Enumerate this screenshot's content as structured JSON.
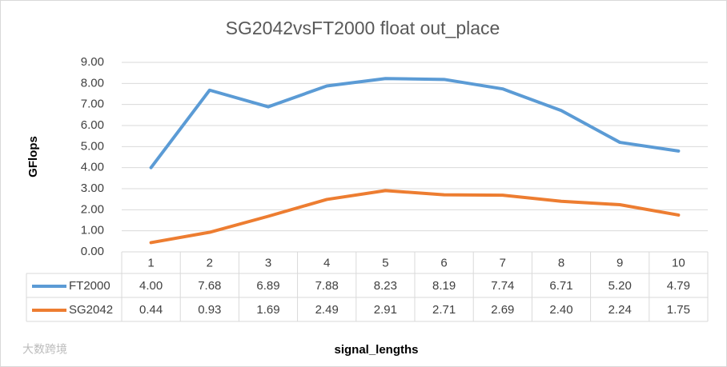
{
  "chart_data": {
    "type": "line",
    "title": "SG2042vsFT2000  float out_place",
    "y_label": "GFlops",
    "x_label": "signal_lengths",
    "watermark": "大数跨境",
    "categories": [
      "1",
      "2",
      "3",
      "4",
      "5",
      "6",
      "7",
      "8",
      "9",
      "10"
    ],
    "series": [
      {
        "name": "FT2000",
        "color": "#5b9bd5",
        "values": [
          4.0,
          7.68,
          6.89,
          7.88,
          8.23,
          8.19,
          7.74,
          6.71,
          5.2,
          4.79
        ],
        "value_labels": [
          "4.00",
          "7.68",
          "6.89",
          "7.88",
          "8.23",
          "8.19",
          "7.74",
          "6.71",
          "5.20",
          "4.79"
        ]
      },
      {
        "name": "SG2042",
        "color": "#ed7d31",
        "values": [
          0.44,
          0.93,
          1.69,
          2.49,
          2.91,
          2.71,
          2.69,
          2.4,
          2.24,
          1.75
        ],
        "value_labels": [
          "0.44",
          "0.93",
          "1.69",
          "2.49",
          "2.91",
          "2.71",
          "2.69",
          "2.40",
          "2.24",
          "1.75"
        ]
      }
    ],
    "ylim": [
      0,
      9
    ],
    "yticks": [
      {
        "value": 0,
        "label": "0.00"
      },
      {
        "value": 1,
        "label": "1.00"
      },
      {
        "value": 2,
        "label": "2.00"
      },
      {
        "value": 3,
        "label": "3.00"
      },
      {
        "value": 4,
        "label": "4.00"
      },
      {
        "value": 5,
        "label": "5.00"
      },
      {
        "value": 6,
        "label": "6.00"
      },
      {
        "value": 7,
        "label": "7.00"
      },
      {
        "value": 8,
        "label": "8.00"
      },
      {
        "value": 9,
        "label": "9.00"
      }
    ],
    "grid": true
  }
}
